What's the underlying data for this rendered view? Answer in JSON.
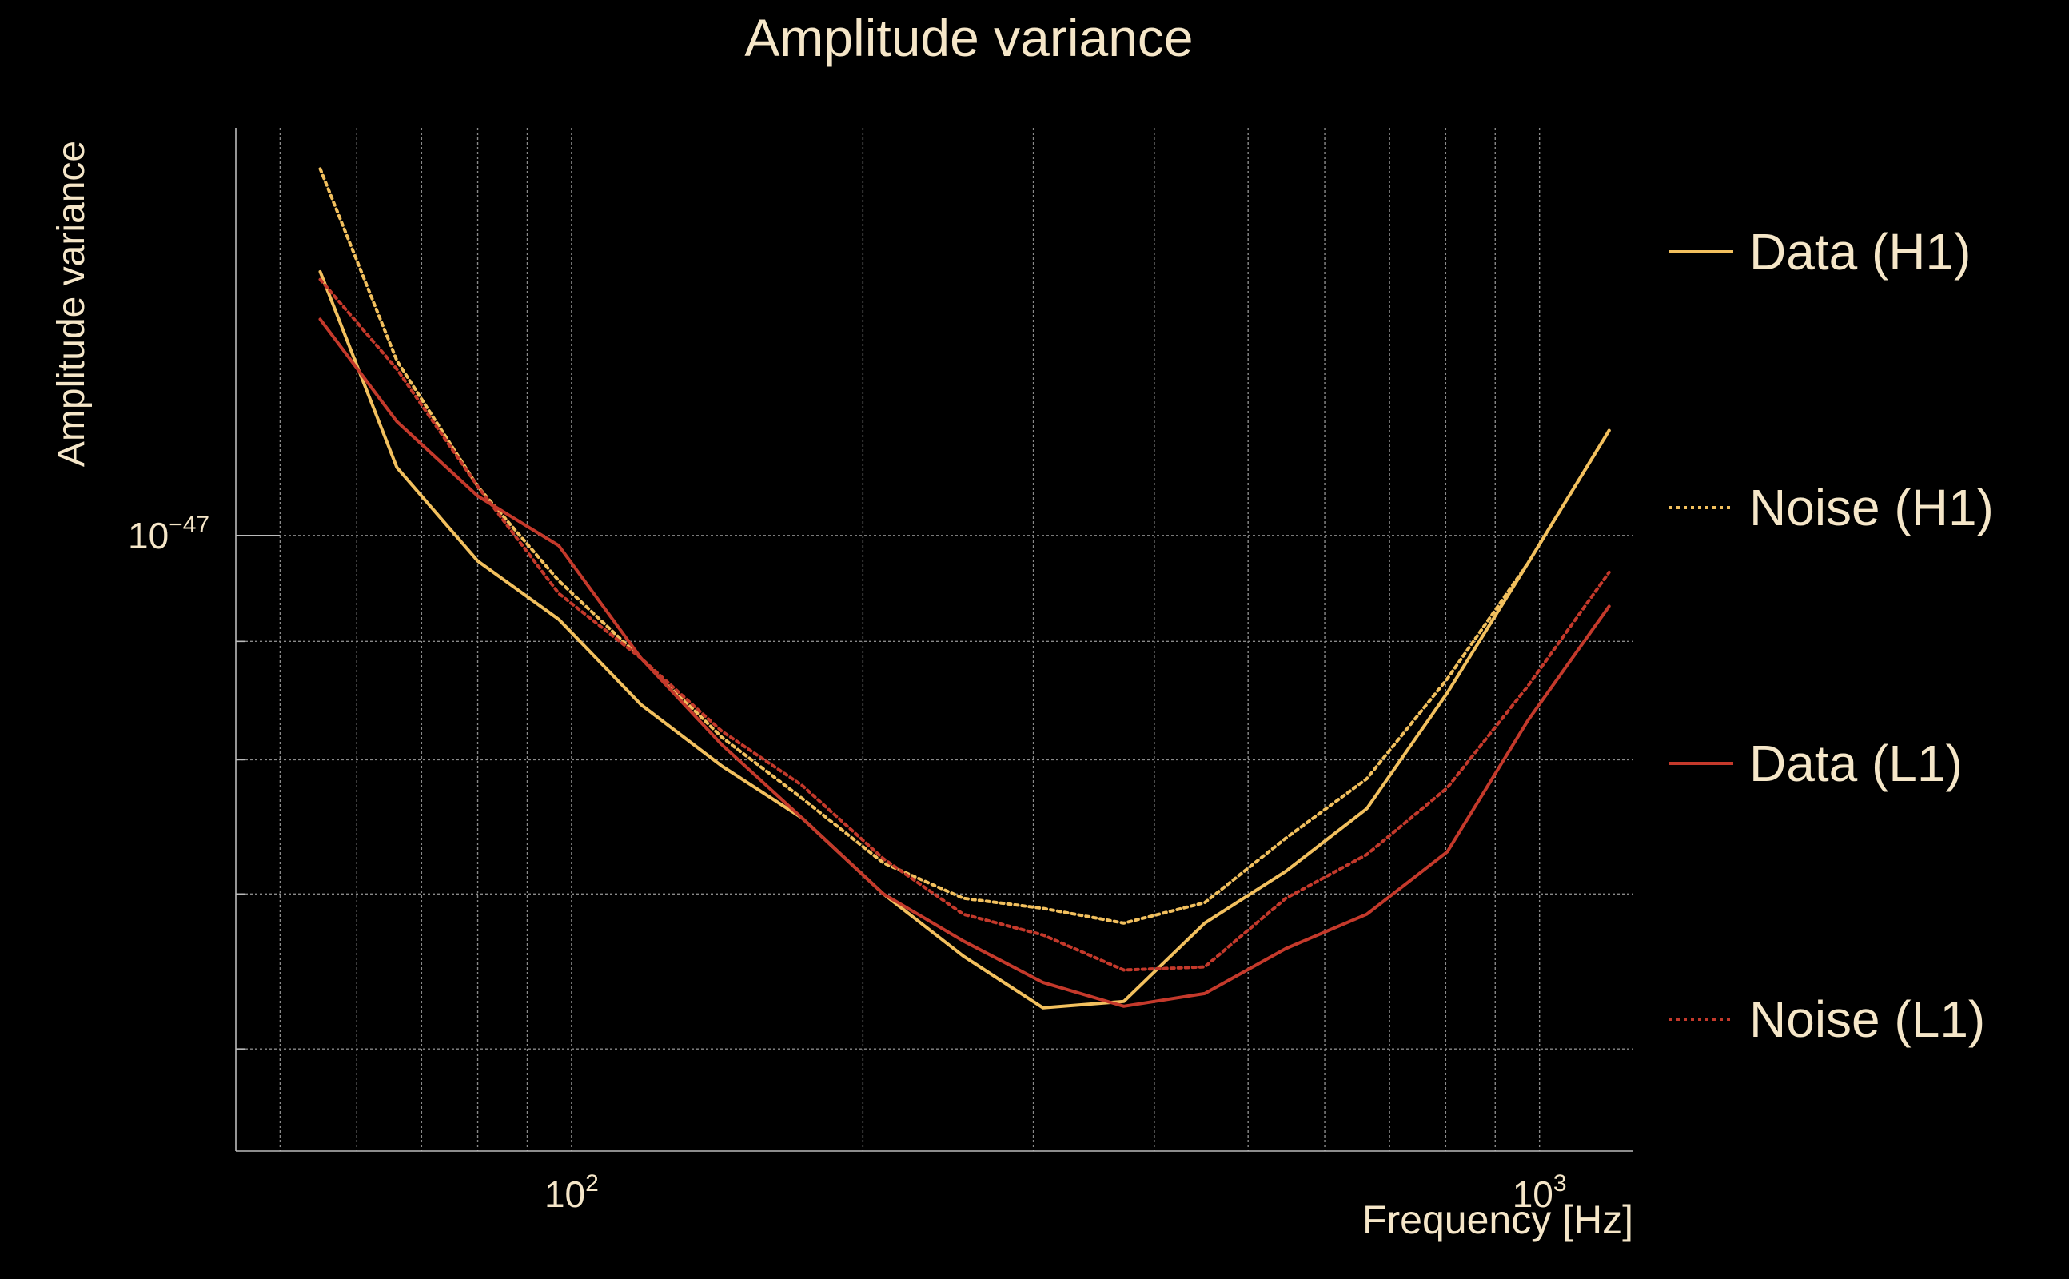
{
  "chart_data": {
    "type": "line",
    "title": "Amplitude variance",
    "xlabel": "Frequency [Hz]",
    "ylabel": "Amplitude variance",
    "x_scale": "log",
    "y_scale": "log",
    "xlim": [
      45,
      1250
    ],
    "ylim": [
      5.42e-48,
      1.5e-47
    ],
    "x_ticks": [
      {
        "value": 100,
        "base": "10",
        "exp": "2"
      },
      {
        "value": 1000,
        "base": "10",
        "exp": "3"
      }
    ],
    "y_ticks": [
      {
        "value": 1e-47,
        "base": "10",
        "exp": "−47"
      }
    ],
    "grid": true,
    "legend_position": "right",
    "x": [
      55,
      66,
      80,
      97,
      118,
      143,
      173,
      210,
      254,
      307,
      372,
      451,
      547,
      663,
      803,
      973,
      1180
    ],
    "series": [
      {
        "name": "Data (H1)",
        "color": "#f2c05e",
        "dash": "solid",
        "values": [
          1.3e-47,
          1.07e-47,
          9.75e-48,
          9.2e-48,
          8.45e-48,
          7.95e-48,
          7.55e-48,
          7e-48,
          6.58e-48,
          6.25e-48,
          6.29e-48,
          6.8e-48,
          7.16e-48,
          7.62e-48,
          8.55e-48,
          9.73e-48,
          1.11e-47
        ]
      },
      {
        "name": "Noise (H1)",
        "color": "#f2c05e",
        "dash": "dotted",
        "values": [
          1.44e-47,
          1.19e-47,
          1.05e-47,
          9.56e-48,
          8.85e-48,
          8.18e-48,
          7.7e-48,
          7.22e-48,
          6.97e-48,
          6.9e-48,
          6.8e-48,
          6.94e-48,
          7.4e-48,
          7.85e-48,
          8.67e-48,
          9.73e-48,
          1.11e-47
        ]
      },
      {
        "name": "Data (L1)",
        "color": "#c4392b",
        "dash": "solid",
        "values": [
          1.24e-47,
          1.12e-47,
          1.04e-47,
          9.9e-48,
          8.85e-48,
          8.12e-48,
          7.55e-48,
          7e-48,
          6.68e-48,
          6.41e-48,
          6.26e-48,
          6.34e-48,
          6.63e-48,
          6.86e-48,
          7.3e-48,
          8.32e-48,
          9.32e-48
        ]
      },
      {
        "name": "Noise (L1)",
        "color": "#c4392b",
        "dash": "dotted",
        "values": [
          1.29e-47,
          1.18e-47,
          1.05e-47,
          9.44e-48,
          8.85e-48,
          8.23e-48,
          7.8e-48,
          7.25e-48,
          6.86e-48,
          6.72e-48,
          6.49e-48,
          6.51e-48,
          6.97e-48,
          7.28e-48,
          7.78e-48,
          8.61e-48,
          9.64e-48
        ]
      }
    ]
  }
}
